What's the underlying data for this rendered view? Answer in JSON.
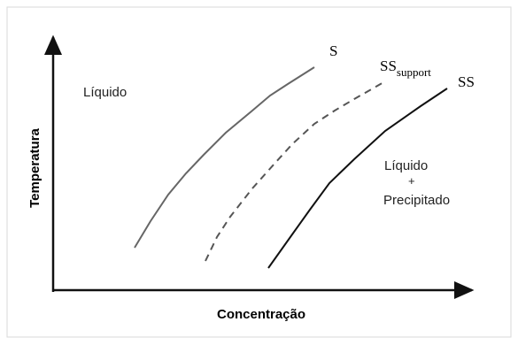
{
  "axes": {
    "y_label": "Temperatura",
    "x_label": "Concentração"
  },
  "curves": {
    "s": "S",
    "ss_support": {
      "main": "SS",
      "subscript": "support"
    },
    "ss": "SS"
  },
  "regions": {
    "liquid": "Líquido",
    "liquid_precipitate": {
      "line1": "Líquido",
      "line2": "+",
      "line3": "Precipitado"
    }
  }
}
